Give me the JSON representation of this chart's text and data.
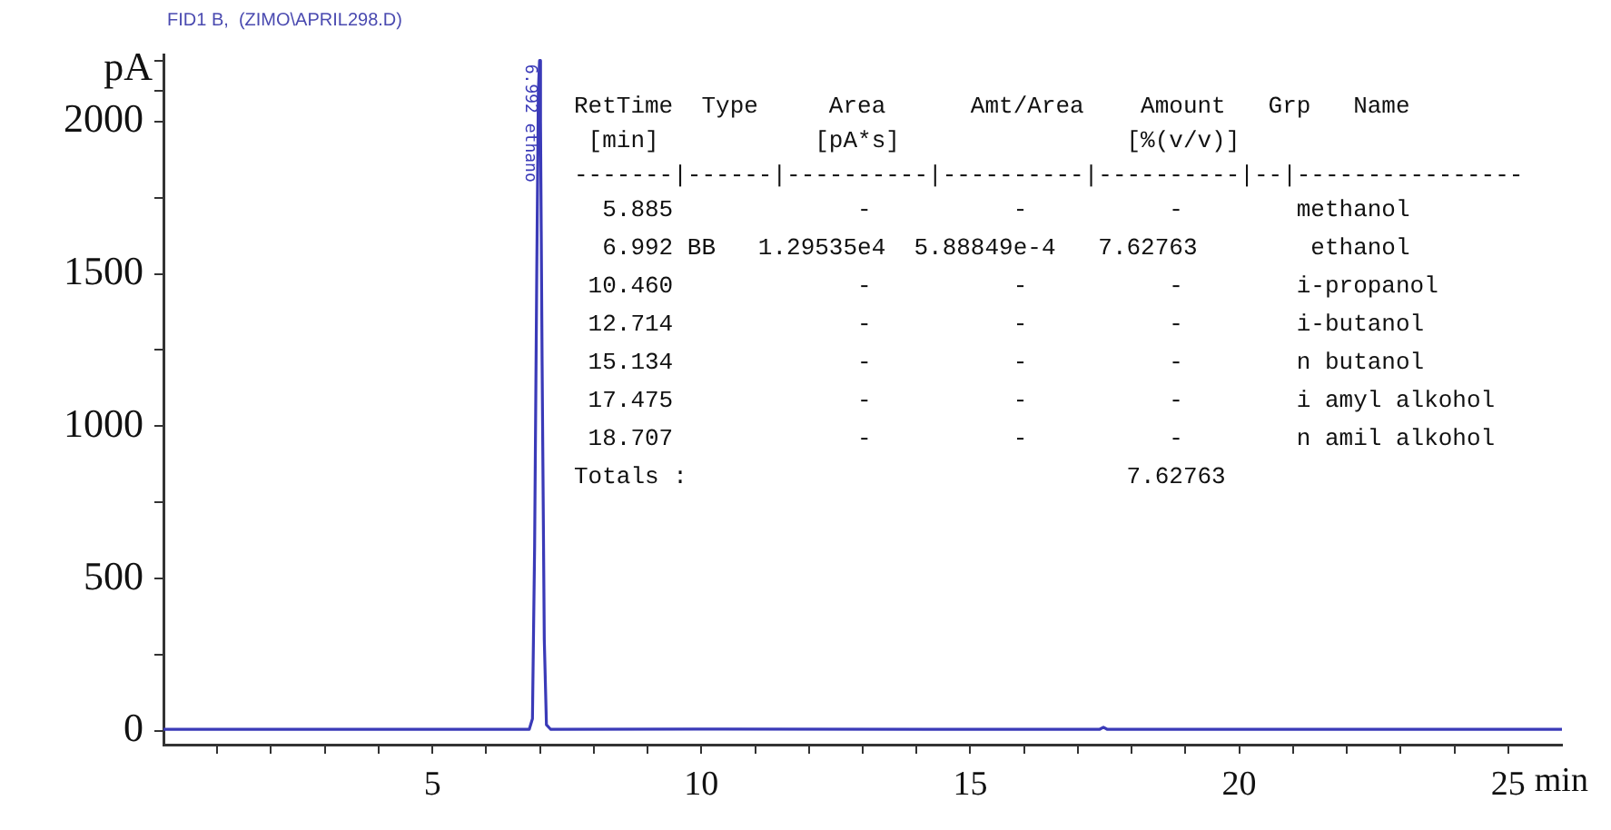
{
  "chart_data": {
    "type": "line",
    "title": "FID1 B,  (ZIMO\\APRIL298.D)",
    "xlabel": "min",
    "ylabel": "pA",
    "x": [
      0,
      6.8,
      6.86,
      6.9,
      6.94,
      6.97,
      6.992,
      7.01,
      7.04,
      7.08,
      7.12,
      7.2,
      10.46,
      17.4,
      17.475,
      17.55,
      26
    ],
    "series": [
      {
        "color": "#3a3ab8",
        "values": [
          5,
          5,
          40,
          600,
          1500,
          2100,
          2200,
          2000,
          1200,
          300,
          20,
          5,
          6,
          5,
          12,
          5,
          5
        ]
      }
    ],
    "xlim": [
      0,
      26
    ],
    "ylim": [
      -45,
      2220
    ],
    "xticks": [
      {
        "value": 1,
        "label": null
      },
      {
        "value": 2,
        "label": null
      },
      {
        "value": 3,
        "label": null
      },
      {
        "value": 4,
        "label": null
      },
      5,
      {
        "value": 6,
        "label": null
      },
      {
        "value": 7,
        "label": null
      },
      {
        "value": 8,
        "label": null
      },
      {
        "value": 9,
        "label": null
      },
      10,
      {
        "value": 11,
        "label": null
      },
      {
        "value": 12,
        "label": null
      },
      {
        "value": 13,
        "label": null
      },
      {
        "value": 14,
        "label": null
      },
      15,
      {
        "value": 16,
        "label": null
      },
      {
        "value": 17,
        "label": null
      },
      {
        "value": 18,
        "label": null
      },
      {
        "value": 19,
        "label": null
      },
      20,
      {
        "value": 21,
        "label": null
      },
      {
        "value": 22,
        "label": null
      },
      {
        "value": 23,
        "label": null
      },
      {
        "value": 24,
        "label": null
      },
      25
    ],
    "yticks": [
      0,
      {
        "value": 250,
        "label": null
      },
      500,
      {
        "value": 750,
        "label": null
      },
      1000,
      {
        "value": 1250,
        "label": null
      },
      1500,
      {
        "value": 1750,
        "label": null
      },
      2000,
      {
        "value": 2100,
        "label": null
      },
      {
        "value": 2200,
        "label": null
      }
    ],
    "grid": false,
    "legend": false,
    "marker": "none",
    "line_style": "solid",
    "annotations": [
      {
        "text": "6.992 ethano",
        "x": 6.992,
        "y": 2200
      },
      "RetTime  Type     Area      Amt/Area    Amount   Grp   Name",
      " [min]           [pA*s]                [%(v/v)]",
      "-------|------|----------|----------|----------|--|----------------",
      "  5.885             -          -          -        methanol",
      "  6.992 BB   1.29535e4  5.88849e-4   7.62763        ethanol",
      " 10.460             -          -          -        i-propanol",
      " 12.714             -          -          -        i-butanol",
      " 15.134             -          -          -        n butanol",
      " 17.475             -          -          -        i amyl alkohol",
      " 18.707             -          -          -        n amil alkohol",
      "Totals :                               7.62763"
    ]
  }
}
